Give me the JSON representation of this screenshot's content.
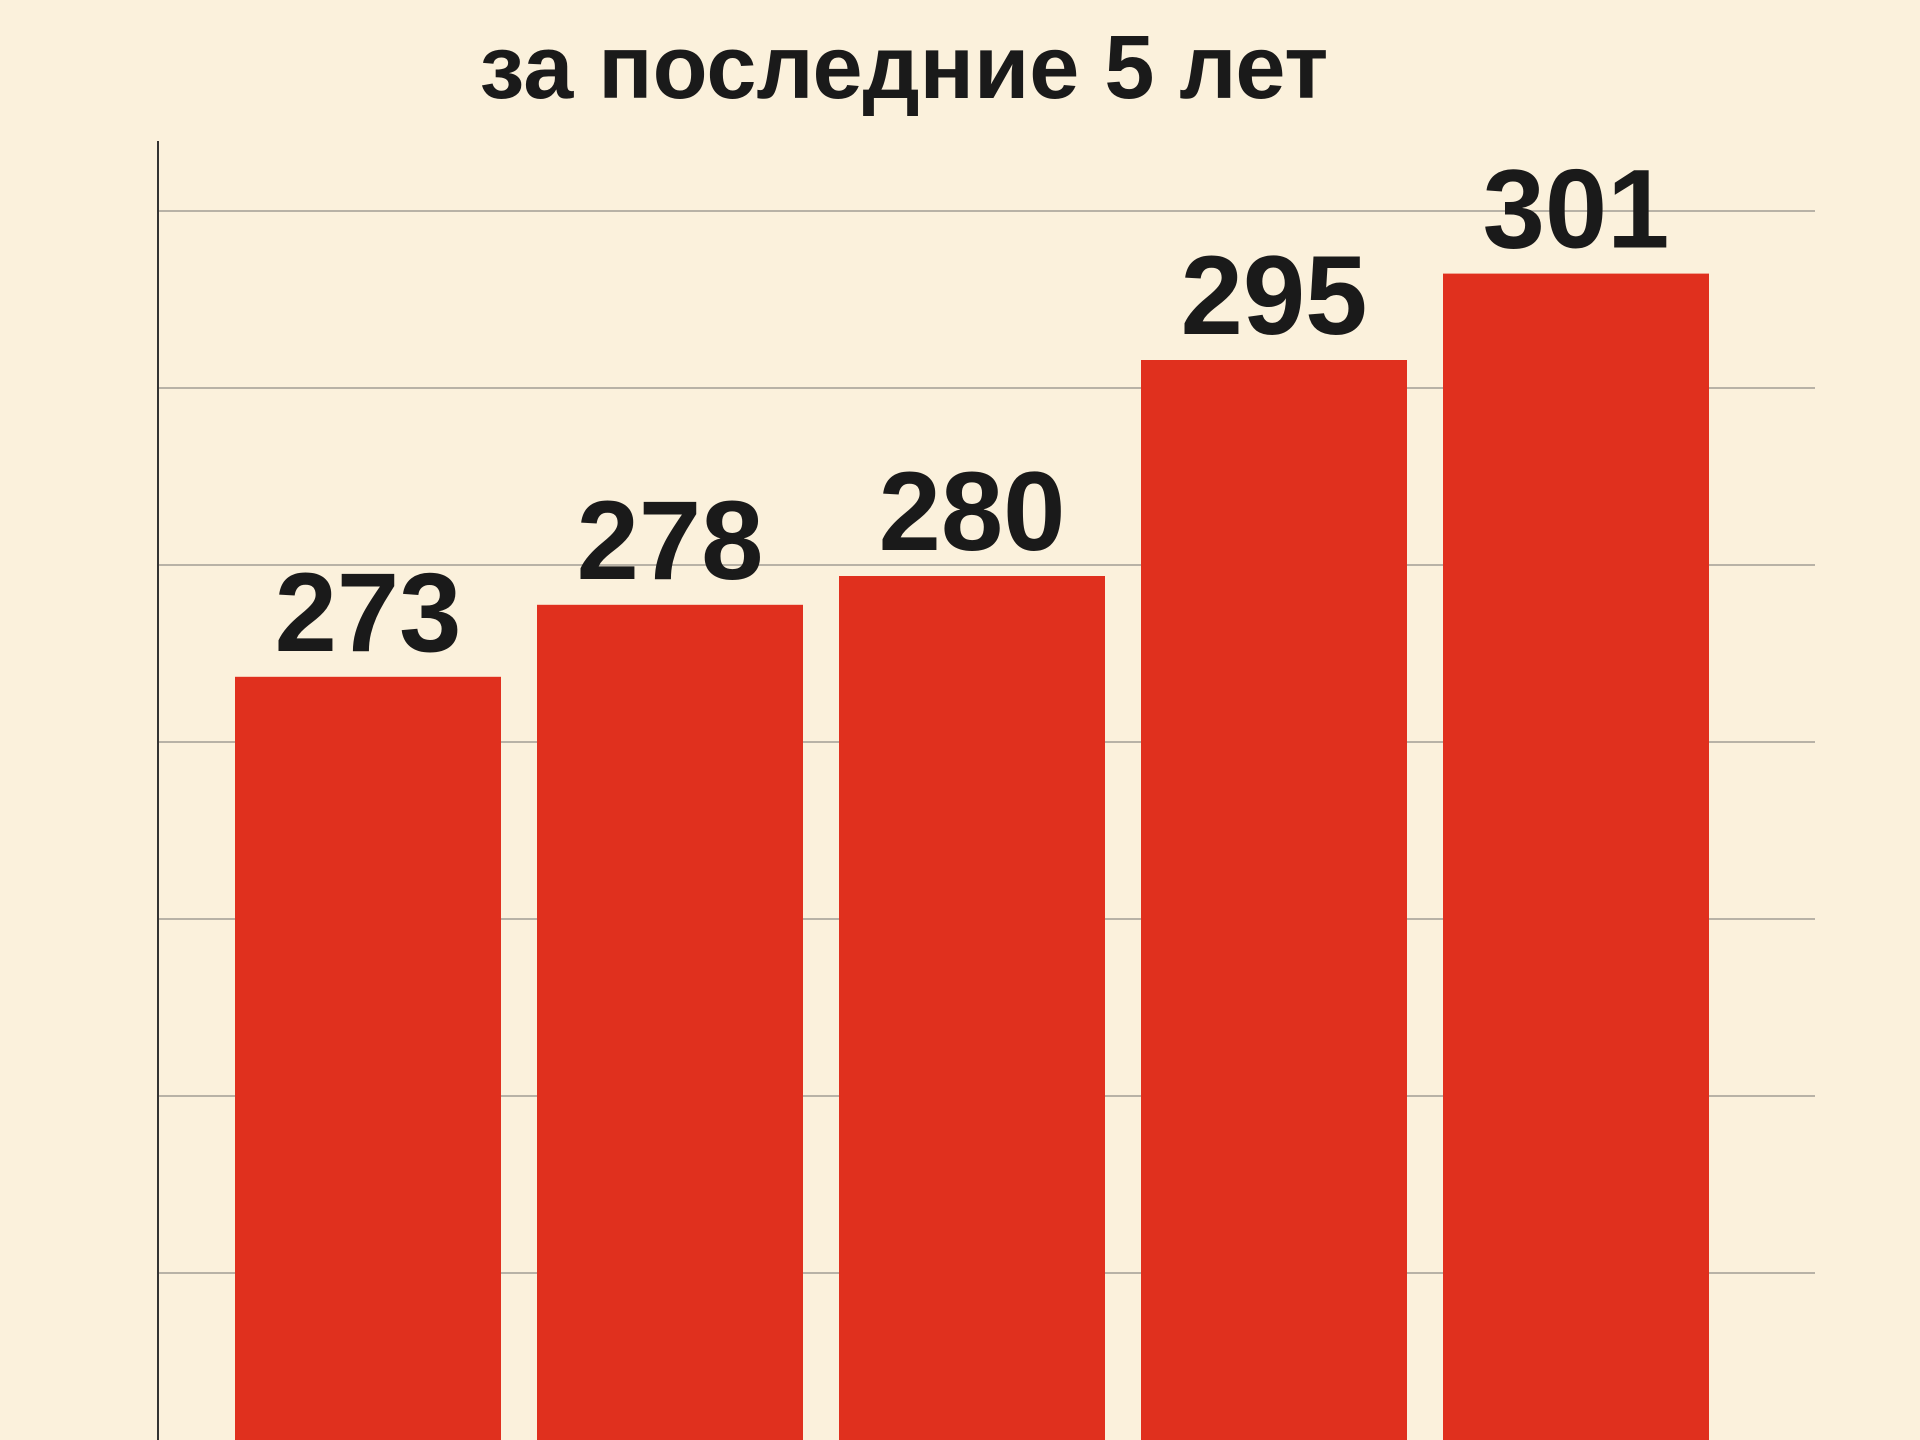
{
  "chart_data": {
    "type": "bar",
    "title": "за последние 5 лет",
    "categories": [
      null,
      null,
      null,
      null,
      null
    ],
    "values": [
      273,
      278,
      280,
      295,
      301
    ],
    "color": "#e0301e",
    "ylim": [
      220,
      320
    ],
    "grid": true
  }
}
